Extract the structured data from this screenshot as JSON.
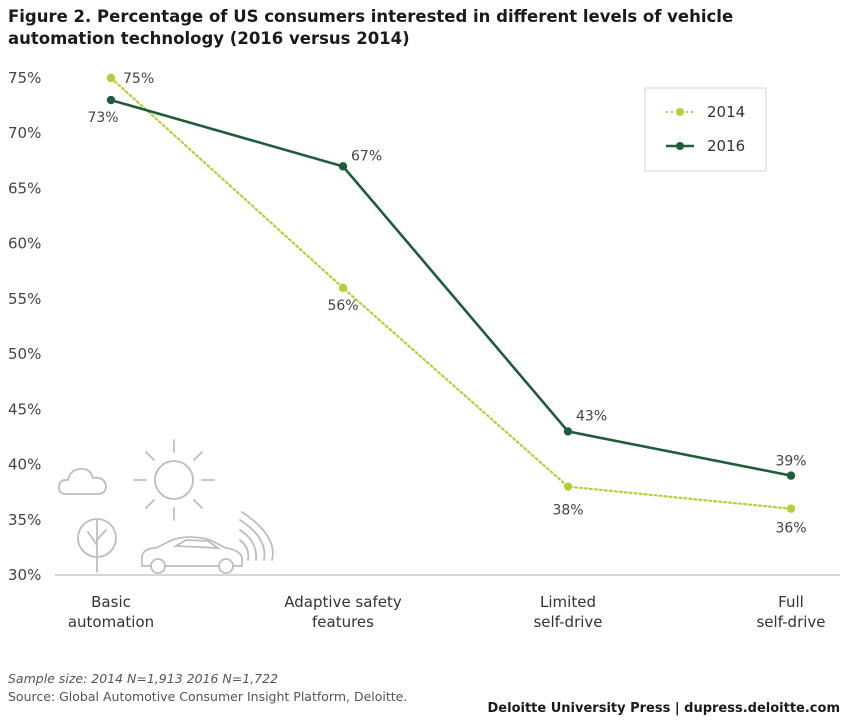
{
  "header": {
    "title": "Figure 2. Percentage of US consumers interested in different levels of vehicle automation technology (2016 versus 2014)"
  },
  "colors": {
    "series_2014": "#b5cf3a",
    "series_2016": "#1f5c3a",
    "axis": "#c8c8c8",
    "illustration": "#bdbdbd"
  },
  "icons": [
    "cloud-icon",
    "sun-icon",
    "tree-icon",
    "car-icon",
    "signal-waves-icon"
  ],
  "chart_data": {
    "type": "line",
    "title": "Figure 2. Percentage of US consumers interested in different levels of vehicle automation technology (2016 versus 2014)",
    "categories": [
      "Basic automation",
      "Adaptive safety features",
      "Limited self-drive",
      "Full self-drive"
    ],
    "category_lines": [
      [
        "Basic",
        "automation"
      ],
      [
        "Adaptive safety",
        "features"
      ],
      [
        "Limited",
        "self-drive"
      ],
      [
        "Full",
        "self-drive"
      ]
    ],
    "y_ticks": [
      "30%",
      "35%",
      "40%",
      "45%",
      "50%",
      "55%",
      "60%",
      "65%",
      "70%",
      "75%"
    ],
    "ylim": [
      30,
      75
    ],
    "grid": false,
    "legend_position": "top-right",
    "series": [
      {
        "name": "2014",
        "style": "dotted",
        "values": [
          75,
          56,
          38,
          36
        ],
        "labels": [
          "75%",
          "56%",
          "38%",
          "36%"
        ]
      },
      {
        "name": "2016",
        "style": "solid",
        "values": [
          73,
          67,
          43,
          39
        ],
        "labels": [
          "73%",
          "67%",
          "43%",
          "39%"
        ]
      }
    ]
  },
  "footer": {
    "sample_size": "Sample size: 2014 N=1,913   2016 N=1,722",
    "source": "Source: Global Automotive Consumer Insight Platform, Deloitte.",
    "credit": "Deloitte University Press  |  dupress.deloitte.com"
  }
}
